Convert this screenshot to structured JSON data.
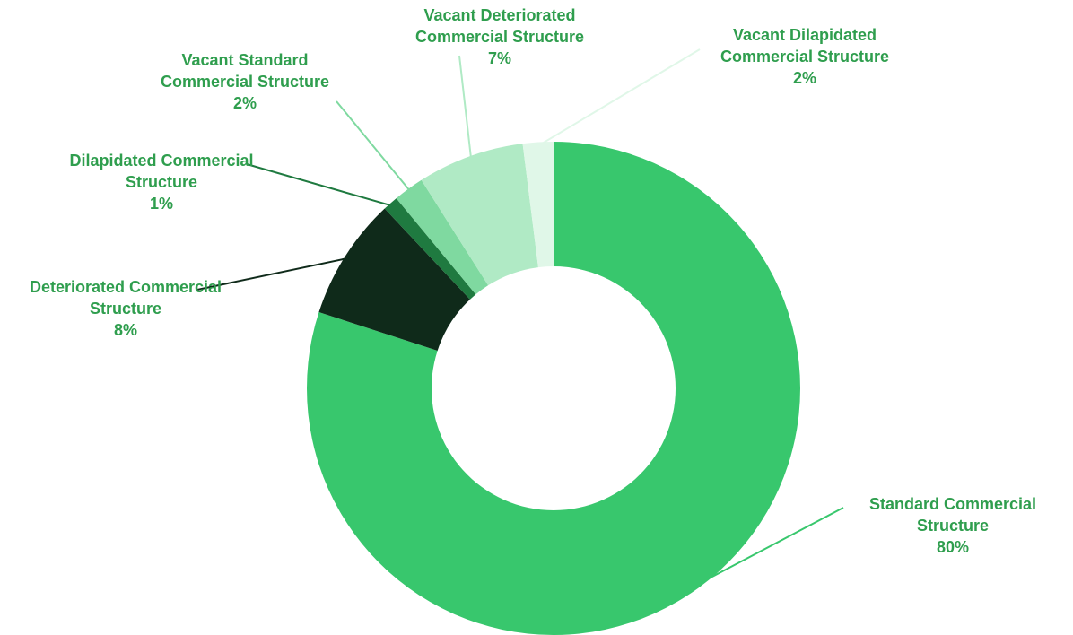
{
  "chart_data": {
    "type": "donut",
    "categories": [
      "Standard Commercial Structure",
      "Deteriorated Commercial Structure",
      "Dilapidated Commercial Structure",
      "Vacant Standard Commercial Structure",
      "Vacant Deteriorated Commercial Structure",
      "Vacant Dilapidated Commercial Structure"
    ],
    "values": [
      80,
      8,
      1,
      2,
      7,
      2
    ],
    "value_labels": [
      "80%",
      "8%",
      "1%",
      "2%",
      "7%",
      "2%"
    ],
    "colors": [
      "#38c76d",
      "#0f2a1a",
      "#1f7a40",
      "#7fd9a0",
      "#b0eac5",
      "#e0f7e8"
    ]
  }
}
